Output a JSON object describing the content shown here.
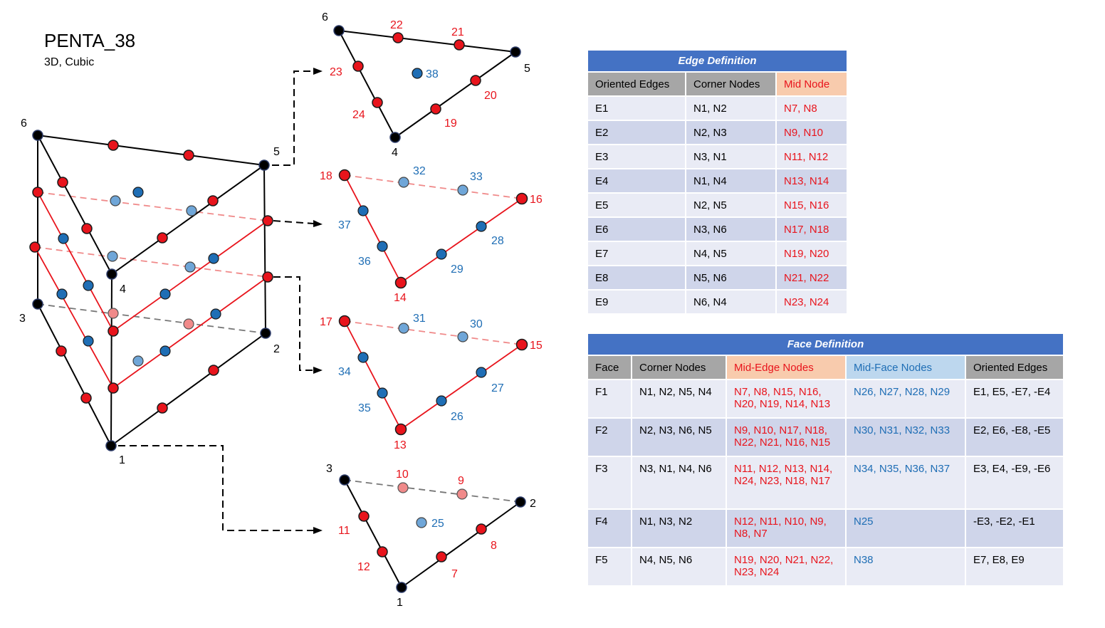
{
  "element": {
    "title": "PENTA_38",
    "subtitle": "3D, Cubic"
  },
  "colors": {
    "red": "#e8141c",
    "blue": "#1f6eb5",
    "light_blue": "#6fa6d8",
    "black": "#000000",
    "table_blue": "#4472c4"
  },
  "prism_labels": [
    "6",
    "5",
    "3",
    "4",
    "2",
    "1"
  ],
  "top_face_labels": {
    "corners": [
      "6",
      "5",
      "4"
    ],
    "mid_edge": [
      "22",
      "21",
      "23",
      "20",
      "24",
      "19"
    ],
    "mid_face": [
      "38"
    ]
  },
  "section_upper_labels": {
    "corners": [
      "18",
      "16",
      "14"
    ],
    "nodes": [
      "32",
      "33",
      "37",
      "28",
      "36",
      "29"
    ]
  },
  "section_lower_labels": {
    "corners": [
      "17",
      "15",
      "13"
    ],
    "nodes": [
      "31",
      "30",
      "34",
      "27",
      "35",
      "26"
    ]
  },
  "bottom_face_labels": {
    "corners": [
      "3",
      "2",
      "1"
    ],
    "mid_edge": [
      "10",
      "9",
      "11",
      "8",
      "12",
      "7"
    ],
    "mid_face": [
      "25"
    ]
  },
  "edge_table": {
    "title": "Edge Definition",
    "headers": [
      "Oriented Edges",
      "Corner Nodes",
      "Mid Node"
    ],
    "rows": [
      [
        "E1",
        "N1, N2",
        "N7, N8"
      ],
      [
        "E2",
        "N2, N3",
        "N9, N10"
      ],
      [
        "E3",
        "N3, N1",
        "N11, N12"
      ],
      [
        "E4",
        "N1, N4",
        "N13, N14"
      ],
      [
        "E5",
        "N2, N5",
        "N15, N16"
      ],
      [
        "E6",
        "N3, N6",
        "N17, N18"
      ],
      [
        "E7",
        "N4, N5",
        "N19, N20"
      ],
      [
        "E8",
        "N5, N6",
        "N21, N22"
      ],
      [
        "E9",
        "N6, N4",
        "N23, N24"
      ]
    ]
  },
  "face_table": {
    "title": "Face Definition",
    "headers": [
      "Face",
      "Corner Nodes",
      "Mid-Edge Nodes",
      "Mid-Face Nodes",
      "Oriented Edges"
    ],
    "rows": [
      [
        "F1",
        "N1, N2, N5, N4",
        "N7, N8, N15, N16, N20, N19, N14, N13",
        "N26, N27, N28, N29",
        "E1, E5, -E7, -E4"
      ],
      [
        "F2",
        "N2, N3, N6, N5",
        "N9, N10, N17, N18, N22, N21, N16, N15",
        "N30, N31, N32, N33",
        "E2, E6, -E8, -E5"
      ],
      [
        "F3",
        "N3, N1, N4, N6",
        "N11, N12, N13, N14, N24, N23, N18, N17",
        "N34, N35, N36, N37",
        "E3, E4, -E9, -E6"
      ],
      [
        "F4",
        "N1, N3, N2",
        "N12, N11, N10, N9, N8, N7",
        "N25",
        "-E3, -E2, -E1"
      ],
      [
        "F5",
        "N4, N5, N6",
        "N19, N20, N21, N22, N23, N24",
        "N38",
        "E7, E8, E9"
      ]
    ]
  }
}
